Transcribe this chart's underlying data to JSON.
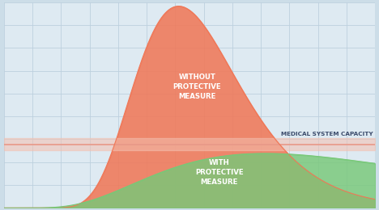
{
  "bg_color": "#ccdde8",
  "plot_bg_color": "#deeaf2",
  "grid_color": "#bdd0de",
  "orange_fill_color": "#f07858",
  "green_fill_color": "#78c878",
  "capacity_line_color": "#e89888",
  "capacity_fill_color": "#f4c0b0",
  "capacity_line_y": 0.315,
  "capacity_text": "MEDICAL SYSTEM CAPACITY",
  "capacity_text_color": "#3a4a6a",
  "without_text": "WITHOUT\nPROTECTIVE\nMEASURE",
  "with_text": "WITH\nPROTECTIVE\nMEASURE",
  "label_color": "#ffffff",
  "xlim": [
    0,
    1
  ],
  "ylim": [
    0,
    1.02
  ]
}
